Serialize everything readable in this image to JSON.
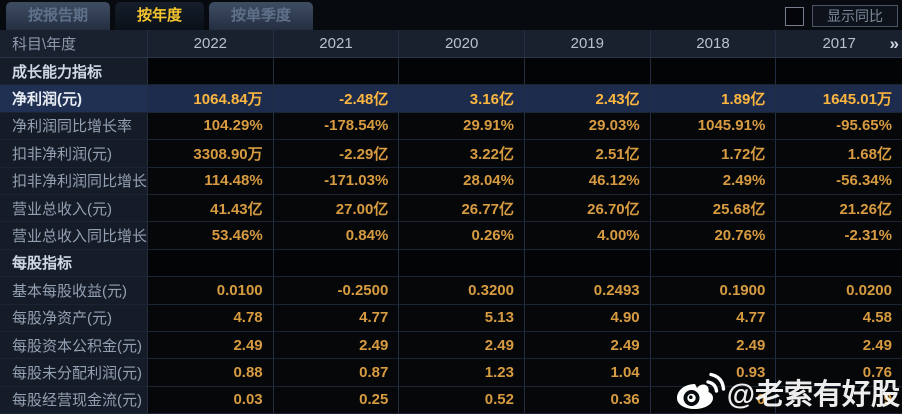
{
  "tabs": [
    {
      "label": "按报告期",
      "active": false
    },
    {
      "label": "按年度",
      "active": true
    },
    {
      "label": "按单季度",
      "active": false
    }
  ],
  "controls": {
    "show_yoy_checkbox_checked": false,
    "show_yoy_label": "显示同比"
  },
  "table": {
    "corner_label": "科目\\年度",
    "years": [
      "2022",
      "2021",
      "2020",
      "2019",
      "2018",
      "2017"
    ],
    "more_icon": "»",
    "rows": [
      {
        "type": "section",
        "highlight": false,
        "label": "成长能力指标",
        "values": [
          "",
          "",
          "",
          "",
          "",
          ""
        ]
      },
      {
        "type": "data",
        "highlight": true,
        "label": "净利润(元)",
        "values": [
          "1064.84万",
          "-2.48亿",
          "3.16亿",
          "2.43亿",
          "1.89亿",
          "1645.01万"
        ]
      },
      {
        "type": "data",
        "highlight": false,
        "label": "净利润同比增长率",
        "values": [
          "104.29%",
          "-178.54%",
          "29.91%",
          "29.03%",
          "1045.91%",
          "-95.65%"
        ]
      },
      {
        "type": "data",
        "highlight": false,
        "label": "扣非净利润(元)",
        "values": [
          "3308.90万",
          "-2.29亿",
          "3.22亿",
          "2.51亿",
          "1.72亿",
          "1.68亿"
        ]
      },
      {
        "type": "data",
        "highlight": false,
        "label": "扣非净利润同比增长率",
        "values": [
          "114.48%",
          "-171.03%",
          "28.04%",
          "46.12%",
          "2.49%",
          "-56.34%"
        ]
      },
      {
        "type": "data",
        "highlight": false,
        "label": "营业总收入(元)",
        "values": [
          "41.43亿",
          "27.00亿",
          "26.77亿",
          "26.70亿",
          "25.68亿",
          "21.26亿"
        ]
      },
      {
        "type": "data",
        "highlight": false,
        "label": "营业总收入同比增长率",
        "values": [
          "53.46%",
          "0.84%",
          "0.26%",
          "4.00%",
          "20.76%",
          "-2.31%"
        ]
      },
      {
        "type": "section",
        "highlight": false,
        "label": "每股指标",
        "values": [
          "",
          "",
          "",
          "",
          "",
          ""
        ]
      },
      {
        "type": "data",
        "highlight": false,
        "label": "基本每股收益(元)",
        "values": [
          "0.0100",
          "-0.2500",
          "0.3200",
          "0.2493",
          "0.1900",
          "0.0200"
        ]
      },
      {
        "type": "data",
        "highlight": false,
        "label": "每股净资产(元)",
        "values": [
          "4.78",
          "4.77",
          "5.13",
          "4.90",
          "4.77",
          "4.58"
        ]
      },
      {
        "type": "data",
        "highlight": false,
        "label": "每股资本公积金(元)",
        "values": [
          "2.49",
          "2.49",
          "2.49",
          "2.49",
          "2.49",
          "2.49"
        ]
      },
      {
        "type": "data",
        "highlight": false,
        "label": "每股未分配利润(元)",
        "values": [
          "0.88",
          "0.87",
          "1.23",
          "1.04",
          "0.93",
          "0.76"
        ]
      },
      {
        "type": "data",
        "highlight": false,
        "label": "每股经营现金流(元)",
        "values": [
          "0.03",
          "0.25",
          "0.52",
          "0.36",
          "0",
          "9"
        ]
      }
    ]
  },
  "watermark": {
    "icon": "weibo-icon",
    "text": "@老索有好股"
  },
  "colors": {
    "accent_gold_value": "#d79b41",
    "highlight_row_bg": "#1d2c4c",
    "highlight_value": "#fdb640",
    "active_tab_text": "#f5c52e",
    "label_column_bg": "#151b27",
    "value_cell_bg": "#060709",
    "header_row_bg": "#19202e"
  }
}
